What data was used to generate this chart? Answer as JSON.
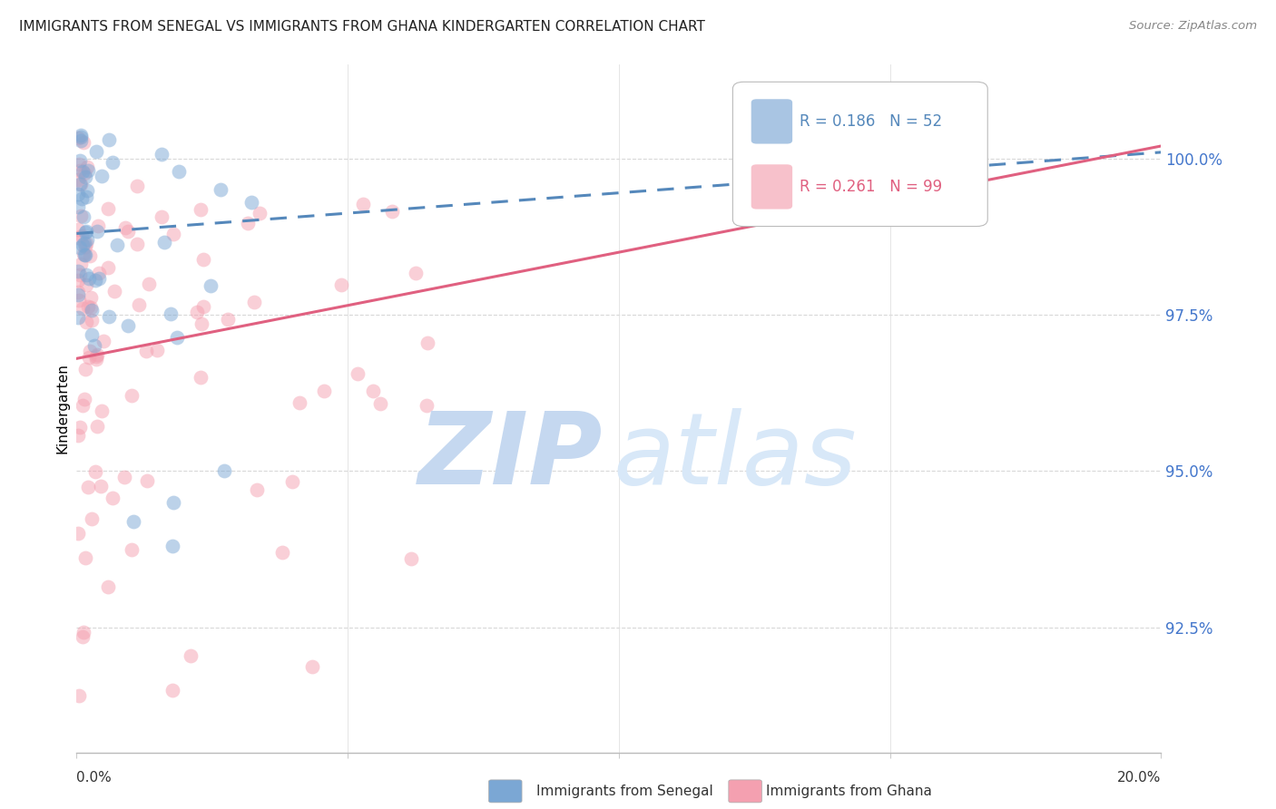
{
  "title": "IMMIGRANTS FROM SENEGAL VS IMMIGRANTS FROM GHANA KINDERGARTEN CORRELATION CHART",
  "source": "Source: ZipAtlas.com",
  "ylabel": "Kindergarten",
  "yticks": [
    92.5,
    95.0,
    97.5,
    100.0
  ],
  "ytick_labels": [
    "92.5%",
    "95.0%",
    "97.5%",
    "100.0%"
  ],
  "xlim": [
    0.0,
    20.0
  ],
  "ylim": [
    90.5,
    101.5
  ],
  "senegal_R": 0.186,
  "senegal_N": 52,
  "ghana_R": 0.261,
  "ghana_N": 99,
  "color_senegal": "#7BA7D4",
  "color_ghana": "#F4A0B0",
  "color_senegal_line": "#5588BB",
  "color_ghana_line": "#E06080",
  "color_ytick": "#4477CC",
  "watermark_zip_color": "#C5D8F0",
  "watermark_atlas_color": "#D8E8F8",
  "senegal_line_x0": 0.0,
  "senegal_line_y0": 98.8,
  "senegal_line_x1": 20.0,
  "senegal_line_y1": 100.1,
  "ghana_line_x0": 0.0,
  "ghana_line_y0": 96.8,
  "ghana_line_x1": 20.0,
  "ghana_line_y1": 100.2
}
